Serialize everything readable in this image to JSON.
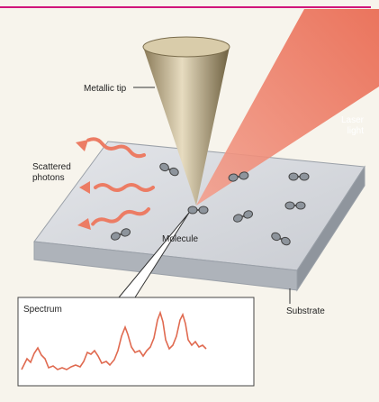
{
  "labels": {
    "metallic_tip": "Metallic tip",
    "laser_light": [
      "Laser",
      "light"
    ],
    "scattered_photons": [
      "Scattered",
      "photons"
    ],
    "molecule": "Molecule",
    "substrate": "Substrate",
    "spectrum": "Spectrum"
  }
}
